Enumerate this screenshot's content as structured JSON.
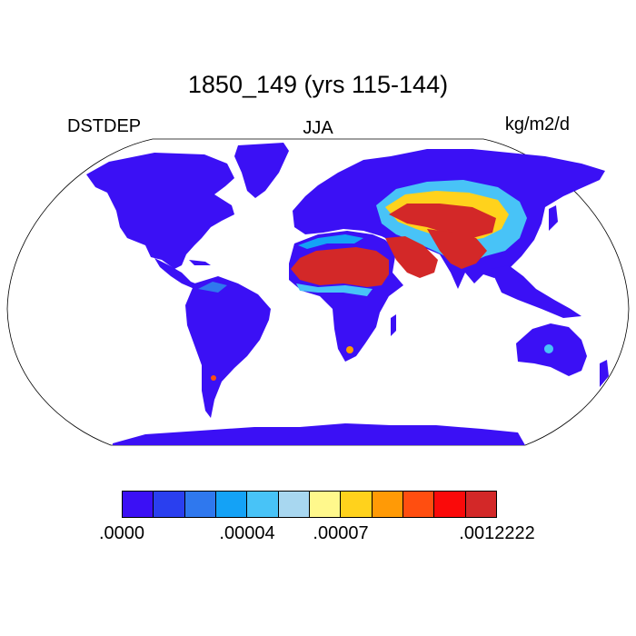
{
  "title": "1850_149 (yrs 115-144)",
  "left_label": "DSTDEP",
  "center_label": "JJA",
  "right_label": "kg/m2/d",
  "colorbar": {
    "colors": [
      "#3b10f5",
      "#2a3fef",
      "#2f78ee",
      "#14a2f6",
      "#48c3f7",
      "#a8d7f0",
      "#fff88c",
      "#ffd21c",
      "#ff9a06",
      "#ff4e10",
      "#fa0a0a",
      "#d32828"
    ],
    "tick_labels": [
      ".0000",
      ".00004",
      ".00007",
      ".0012222"
    ]
  },
  "map": {
    "projection": "Robinson",
    "land_low_color": "#3b10f5",
    "ocean_color": "#ffffff"
  }
}
